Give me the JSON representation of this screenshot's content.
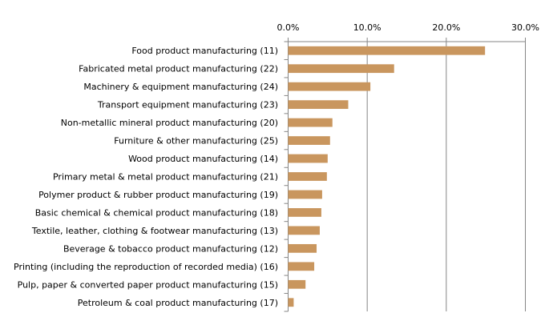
{
  "chart_data": {
    "type": "bar",
    "orientation": "horizontal",
    "title": "",
    "xlabel": "",
    "ylabel": "",
    "xlim": [
      0,
      30
    ],
    "x_axis_position": "top",
    "x_ticks": [
      "0.0%",
      "10.0%",
      "20.0%",
      "30.0%"
    ],
    "grid": true,
    "legend": "none",
    "bar_color": "#C9965E",
    "categories": [
      "Food product manufacturing (11)",
      "Fabricated metal product manufacturing (22)",
      "Machinery & equipment manufacturing (24)",
      "Transport equipment manufacturing (23)",
      "Non-metallic mineral product manufacturing (20)",
      "Furniture & other manufacturing (25)",
      "Wood product manufacturing (14)",
      "Primary metal & metal product manufacturing (21)",
      "Polymer product & rubber product manufacturing (19)",
      "Basic chemical & chemical product manufacturing (18)",
      "Textile, leather, clothing & footwear manufacturing (13)",
      "Beverage & tobacco product manufacturing (12)",
      "Printing (including the reproduction of recorded media) (16)",
      "Pulp, paper & converted paper product manufacturing (15)",
      "Petroleum & coal product manufacturing (17)"
    ],
    "values": [
      24.9,
      13.4,
      10.4,
      7.6,
      5.6,
      5.3,
      5.0,
      4.9,
      4.3,
      4.2,
      4.0,
      3.6,
      3.3,
      2.2,
      0.7
    ]
  }
}
